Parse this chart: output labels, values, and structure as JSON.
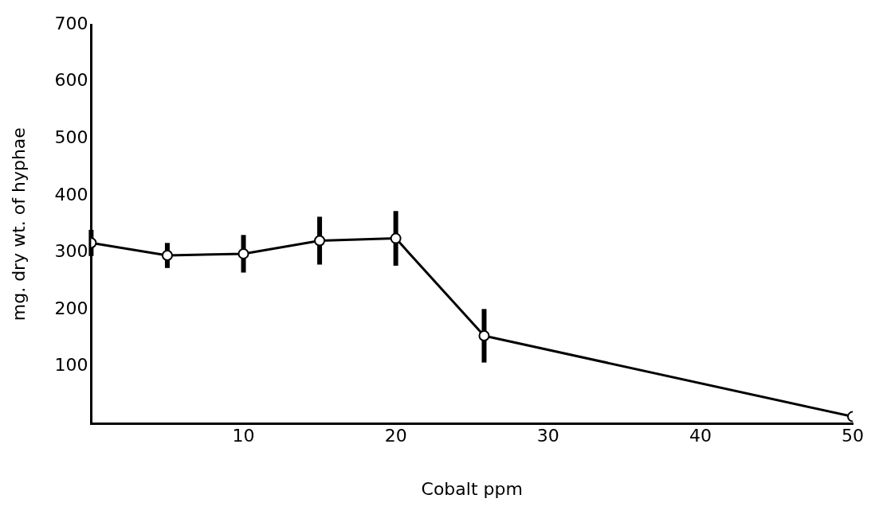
{
  "chart_data": {
    "type": "line",
    "xlabel": "Cobalt ppm",
    "ylabel": "mg. dry wt. of hyphae",
    "x": [
      0,
      5,
      10,
      15,
      20,
      25.8,
      50
    ],
    "series": [
      {
        "color": "#000000",
        "values": [
          317,
          295,
          298,
          321,
          325,
          154,
          12
        ],
        "errors": [
          23,
          22,
          33,
          42,
          48,
          47,
          null
        ]
      }
    ],
    "xlim": [
      0,
      50
    ],
    "xticks": [
      10,
      20,
      30,
      40,
      50
    ],
    "ylim": [
      0,
      700
    ],
    "yticks": [
      100,
      200,
      300,
      400,
      500,
      600,
      700
    ],
    "marker": "circle",
    "line_style": "solid",
    "grid": false,
    "legend": false
  }
}
